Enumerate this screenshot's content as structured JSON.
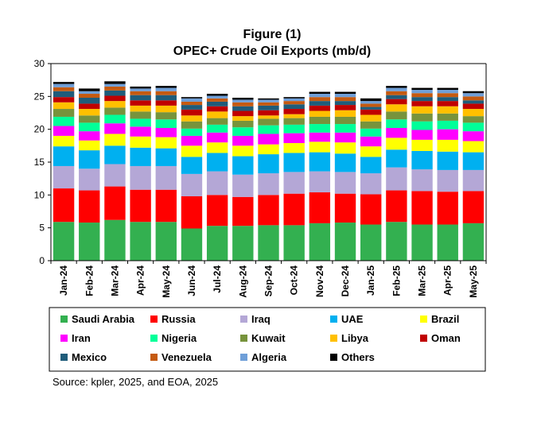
{
  "figure_label": "Figure (1)",
  "source": "Source: kpler, 2025, and EOA, 2025",
  "chart_data": {
    "type": "bar",
    "stacked": true,
    "title": "OPEC+ Crude Oil Exports (mb/d)",
    "xlabel": "",
    "ylabel": "",
    "ylim": [
      0,
      30
    ],
    "yticks": [
      0,
      5,
      10,
      15,
      20,
      25,
      30
    ],
    "grid": false,
    "legend_position": "bottom",
    "categories": [
      "Jan-24",
      "Feb-24",
      "Mar-24",
      "Apr-24",
      "May-24",
      "Jun-24",
      "Jul-24",
      "Aug-24",
      "Sep-24",
      "Oct-24",
      "Nov-24",
      "Dec-24",
      "Jan-25",
      "Feb-25",
      "Mar-25",
      "Apr-25",
      "May-25"
    ],
    "series": [
      {
        "name": "Saudi Arabia",
        "color": "#33b050",
        "values": [
          5.9,
          5.8,
          6.2,
          5.9,
          5.9,
          4.9,
          5.3,
          5.3,
          5.4,
          5.4,
          5.7,
          5.8,
          5.5,
          5.9,
          5.5,
          5.5,
          5.7
        ]
      },
      {
        "name": "Russia",
        "color": "#ff0000",
        "values": [
          5.1,
          4.9,
          5.1,
          4.9,
          4.9,
          4.9,
          4.7,
          4.4,
          4.6,
          4.8,
          4.7,
          4.4,
          4.6,
          4.8,
          5.1,
          5.0,
          4.9
        ]
      },
      {
        "name": "Iraq",
        "color": "#b4a7d6",
        "values": [
          3.4,
          3.3,
          3.4,
          3.6,
          3.6,
          3.4,
          3.6,
          3.4,
          3.3,
          3.3,
          3.2,
          3.3,
          3.2,
          3.5,
          3.3,
          3.3,
          3.2
        ]
      },
      {
        "name": "UAE",
        "color": "#00b0f0",
        "values": [
          3.0,
          2.8,
          2.8,
          2.8,
          2.7,
          2.6,
          2.8,
          2.8,
          2.9,
          2.9,
          2.9,
          2.8,
          2.5,
          2.7,
          2.8,
          2.8,
          2.7
        ]
      },
      {
        "name": "Brazil",
        "color": "#ffff00",
        "values": [
          1.6,
          1.5,
          1.8,
          1.7,
          1.7,
          1.7,
          1.6,
          1.6,
          1.5,
          1.5,
          1.6,
          1.7,
          1.6,
          1.8,
          1.7,
          1.8,
          1.7
        ]
      },
      {
        "name": "Iran",
        "color": "#ff00ff",
        "values": [
          1.5,
          1.4,
          1.6,
          1.5,
          1.4,
          1.5,
          1.5,
          1.5,
          1.6,
          1.5,
          1.4,
          1.5,
          1.5,
          1.5,
          1.5,
          1.6,
          1.5
        ]
      },
      {
        "name": "Nigeria",
        "color": "#00ff99",
        "values": [
          1.4,
          1.3,
          1.3,
          1.2,
          1.3,
          1.1,
          1.2,
          1.3,
          1.3,
          1.3,
          1.3,
          1.3,
          1.2,
          1.3,
          1.3,
          1.3,
          1.3
        ]
      },
      {
        "name": "Kuwait",
        "color": "#77933c",
        "values": [
          1.2,
          1.1,
          1.1,
          1.1,
          1.1,
          1.1,
          1.0,
          1.0,
          1.0,
          1.0,
          1.1,
          1.1,
          1.1,
          1.2,
          1.2,
          1.1,
          1.0
        ]
      },
      {
        "name": "Libya",
        "color": "#ffc000",
        "values": [
          1.0,
          1.0,
          1.0,
          0.9,
          1.0,
          0.9,
          1.0,
          0.7,
          0.5,
          0.6,
          0.9,
          1.0,
          1.0,
          1.1,
          1.1,
          1.1,
          1.1
        ]
      },
      {
        "name": "Oman",
        "color": "#c00000",
        "values": [
          0.8,
          0.8,
          0.8,
          0.8,
          0.8,
          0.9,
          0.8,
          0.8,
          0.8,
          0.8,
          0.8,
          0.8,
          0.8,
          0.8,
          0.8,
          0.8,
          0.8
        ]
      },
      {
        "name": "Mexico",
        "color": "#1f5c7a",
        "values": [
          0.9,
          0.9,
          0.8,
          0.8,
          0.8,
          0.7,
          0.7,
          0.7,
          0.7,
          0.7,
          0.7,
          0.6,
          0.4,
          0.6,
          0.6,
          0.6,
          0.5
        ]
      },
      {
        "name": "Venezuela",
        "color": "#c55a11",
        "values": [
          0.6,
          0.6,
          0.6,
          0.6,
          0.6,
          0.5,
          0.5,
          0.6,
          0.5,
          0.5,
          0.6,
          0.6,
          0.5,
          0.6,
          0.6,
          0.6,
          0.6
        ]
      },
      {
        "name": "Algeria",
        "color": "#6f9fd8",
        "values": [
          0.5,
          0.4,
          0.4,
          0.4,
          0.5,
          0.5,
          0.4,
          0.4,
          0.4,
          0.4,
          0.5,
          0.5,
          0.4,
          0.5,
          0.5,
          0.5,
          0.5
        ]
      },
      {
        "name": "Others",
        "color": "#000000",
        "values": [
          0.3,
          0.4,
          0.4,
          0.3,
          0.3,
          0.2,
          0.3,
          0.3,
          0.2,
          0.2,
          0.3,
          0.3,
          0.4,
          0.3,
          0.3,
          0.3,
          0.3
        ]
      }
    ]
  }
}
